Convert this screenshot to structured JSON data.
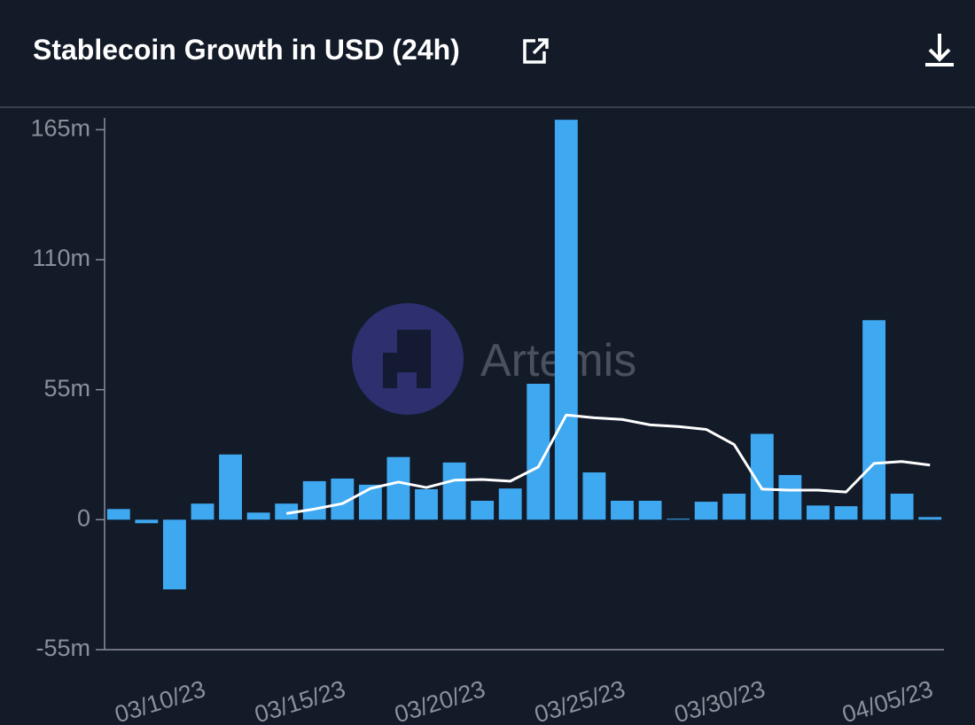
{
  "chart_data": {
    "type": "bar",
    "title": "Stablecoin Growth in USD (24h)",
    "watermark": "Artemis",
    "categories": [
      null,
      null,
      null,
      "03/10/23",
      null,
      null,
      null,
      null,
      "03/15/23",
      null,
      null,
      null,
      null,
      "03/20/23",
      null,
      null,
      null,
      null,
      "03/25/23",
      null,
      null,
      null,
      null,
      "03/30/23",
      null,
      null,
      null,
      null,
      null,
      "04/05/23"
    ],
    "series": [
      {
        "type": "bar",
        "color": "#3ea8f0",
        "values": [
          4.5,
          -1.5,
          -29.5,
          6.8,
          27.6,
          3,
          6.8,
          16.3,
          17.4,
          14.8,
          26.5,
          12.9,
          24.2,
          8,
          13.2,
          57.5,
          169.2,
          20,
          8,
          8,
          0.4,
          7.6,
          11,
          36.3,
          18.9,
          6,
          5.7,
          84.4,
          11,
          1.1
        ]
      },
      {
        "type": "line",
        "color": "#ffffff",
        "values": [
          null,
          null,
          null,
          null,
          null,
          null,
          2.6,
          4.5,
          6.8,
          13.2,
          15.9,
          13.6,
          16.7,
          17,
          16.3,
          22.3,
          44.3,
          43.1,
          42.4,
          40.1,
          39.4,
          38.2,
          31.8,
          12.9,
          12.5,
          12.5,
          11.7,
          23.8,
          24.6,
          23.1
        ]
      }
    ],
    "ylim": [
      -55,
      170
    ],
    "yticks": [
      {
        "value": -55,
        "label": "-55m"
      },
      0,
      {
        "value": 55,
        "label": "55m"
      },
      {
        "value": 110,
        "label": "110m"
      },
      {
        "value": 165,
        "label": "165m"
      }
    ]
  }
}
